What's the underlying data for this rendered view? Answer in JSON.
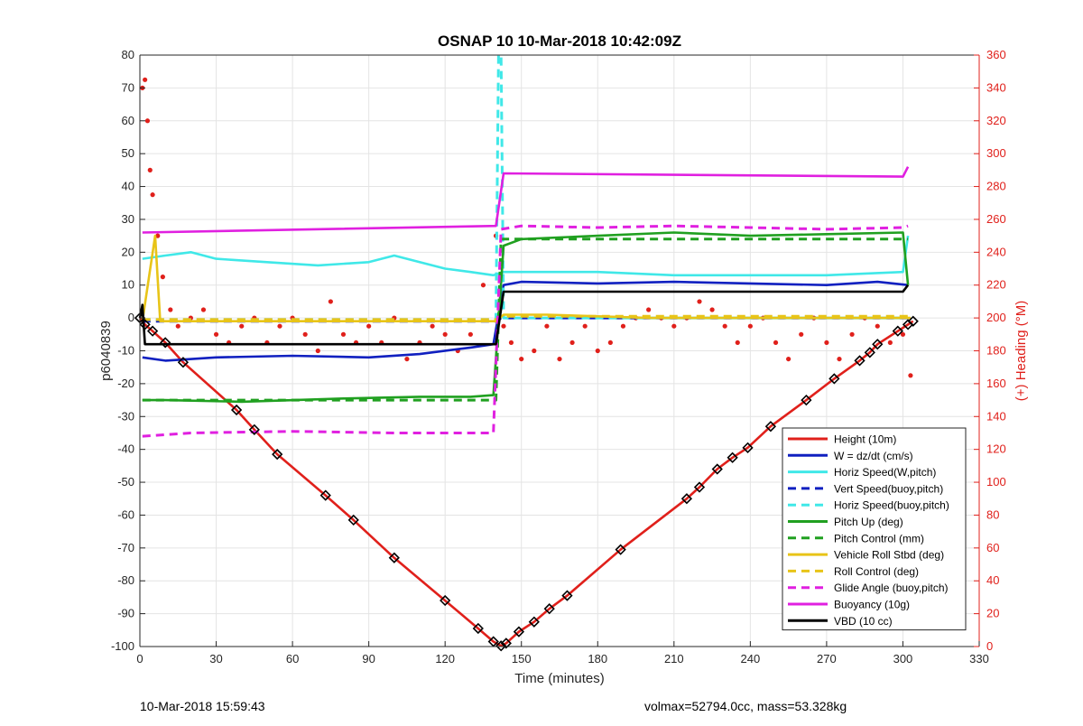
{
  "title": "OSNAP 10 10-Mar-2018 10:42:09Z",
  "footer": {
    "left": "10-Mar-2018 15:59:43",
    "right": "volmax=52794.0cc, mass=53.328kg"
  },
  "colors": {
    "height": "#e0201b",
    "w": "#1020c0",
    "horiz_speed": "#40e8e8",
    "pitch": "#20a020",
    "roll": "#e8c418",
    "glide": "#e020e0",
    "buoyancy": "#e020e0",
    "vbd": "#000000",
    "heading": "#e0201b"
  },
  "chart_data": {
    "type": "line",
    "title": "OSNAP 10 10-Mar-2018 10:42:09Z",
    "xlabel": "Time (minutes)",
    "ylabel": "p6040839",
    "y2label": "(+) Heading (°M)",
    "xlim": [
      0,
      330
    ],
    "ylim": [
      -100,
      80
    ],
    "y2lim": [
      0,
      360
    ],
    "xticks": [
      0,
      30,
      60,
      90,
      120,
      150,
      180,
      210,
      240,
      270,
      300,
      330
    ],
    "yticks": [
      -100,
      -90,
      -80,
      -70,
      -60,
      -50,
      -40,
      -30,
      -20,
      -10,
      0,
      10,
      20,
      30,
      40,
      50,
      60,
      70,
      80
    ],
    "y2ticks": [
      0,
      20,
      40,
      60,
      80,
      100,
      120,
      140,
      160,
      180,
      200,
      220,
      240,
      260,
      280,
      300,
      320,
      340,
      360
    ],
    "grid": true,
    "legend_position": "bottom-right",
    "series": [
      {
        "name": "Height (10m)",
        "color": "#e0201b",
        "style": "solid",
        "x": [
          0,
          2,
          5,
          10,
          17,
          38,
          45,
          54,
          73,
          84,
          100,
          120,
          133,
          139,
          142,
          144,
          149,
          155,
          161,
          168,
          189,
          215,
          220,
          227,
          233,
          239,
          248,
          262,
          273,
          283,
          287,
          290,
          298,
          302,
          304
        ],
        "y": [
          0,
          -2,
          -4,
          -7.5,
          -13.5,
          -28,
          -34,
          -41.5,
          -54,
          -61.5,
          -73,
          -86,
          -94.5,
          -98.5,
          -99.8,
          -99,
          -95.5,
          -92.5,
          -88.5,
          -84.5,
          -70.5,
          -55,
          -51.5,
          -46,
          -42.5,
          -39.5,
          -33,
          -25,
          -18.5,
          -13,
          -10.5,
          -8,
          -4,
          -2,
          -1
        ]
      },
      {
        "name": "W = dz/dt (cm/s)",
        "color": "#1020c0",
        "style": "solid",
        "x": [
          1,
          10,
          30,
          60,
          90,
          110,
          130,
          139,
          143,
          150,
          180,
          210,
          240,
          270,
          290,
          302
        ],
        "y": [
          -12,
          -13,
          -12,
          -11.5,
          -12,
          -11,
          -9,
          -8,
          10,
          11,
          10.5,
          11,
          10.5,
          10,
          11,
          10
        ]
      },
      {
        "name": "Horiz Speed(W,pitch)",
        "color": "#40e8e8",
        "style": "solid",
        "x": [
          1,
          10,
          20,
          30,
          50,
          70,
          90,
          100,
          110,
          120,
          130,
          139,
          143,
          150,
          180,
          210,
          240,
          270,
          300,
          302
        ],
        "y": [
          18,
          19,
          20,
          18,
          17,
          16,
          17,
          19,
          17,
          15,
          14,
          13,
          14,
          14,
          14,
          13,
          13,
          13,
          14,
          25
        ]
      },
      {
        "name": "Vert Speed(buoy,pitch)",
        "color": "#1020c0",
        "style": "dashed",
        "x": [
          1,
          140,
          142,
          302
        ],
        "y": [
          -1,
          -1,
          0,
          0
        ]
      },
      {
        "name": "Horiz Speed(buoy,pitch)",
        "color": "#40e8e8",
        "style": "dashed",
        "x": [
          1,
          140,
          141,
          142,
          143,
          302
        ],
        "y": [
          -0.5,
          -0.5,
          80,
          80,
          0,
          0
        ]
      },
      {
        "name": "Pitch Up (deg)",
        "color": "#20a020",
        "style": "solid",
        "x": [
          1,
          10,
          40,
          80,
          110,
          130,
          139,
          143,
          150,
          180,
          210,
          240,
          270,
          300,
          302
        ],
        "y": [
          -25,
          -25,
          -25.5,
          -24.5,
          -24,
          -24,
          -23.5,
          22,
          24,
          25,
          26,
          25,
          25.5,
          26,
          10
        ]
      },
      {
        "name": "Pitch Control (mm)",
        "color": "#20a020",
        "style": "dashed",
        "x": [
          1,
          140,
          142,
          302
        ],
        "y": [
          -25,
          -25,
          24,
          24
        ]
      },
      {
        "name": "Vehicle Roll Stbd (deg)",
        "color": "#e8c418",
        "style": "solid",
        "x": [
          1,
          6,
          8,
          15,
          18,
          50,
          60,
          90,
          140,
          143,
          160,
          200,
          220,
          260,
          300,
          303
        ],
        "y": [
          -1,
          25,
          -1,
          -1,
          -1,
          -1,
          -1,
          -1,
          -1,
          1,
          1,
          0,
          0,
          0,
          0,
          0
        ]
      },
      {
        "name": "Roll Control (deg)",
        "color": "#e8c418",
        "style": "dashed",
        "x": [
          1,
          140,
          142,
          302
        ],
        "y": [
          -0.5,
          -0.5,
          0.5,
          0.5
        ]
      },
      {
        "name": "Glide Angle (buoy,pitch)",
        "color": "#e020e0",
        "style": "dashed",
        "x": [
          1,
          20,
          60,
          100,
          139,
          142,
          150,
          180,
          210,
          240,
          270,
          300,
          302
        ],
        "y": [
          -36,
          -35,
          -34.5,
          -35,
          -35,
          27,
          28,
          27.5,
          28,
          27.5,
          27,
          27.5,
          28
        ]
      },
      {
        "name": "Buoyancy (10g)",
        "color": "#e020e0",
        "style": "solid",
        "x": [
          1,
          140,
          143,
          300,
          302
        ],
        "y": [
          26,
          28,
          44,
          43,
          46
        ]
      },
      {
        "name": "VBD (10 cc)",
        "color": "#000000",
        "style": "solid",
        "x": [
          0,
          1,
          2,
          140,
          143,
          300,
          302
        ],
        "y": [
          0,
          4,
          -8,
          -8,
          8,
          8,
          10
        ]
      }
    ],
    "heading_series": {
      "axis": "right",
      "color": "#e0201b",
      "style": "dots",
      "x": [
        1,
        2,
        3,
        4,
        5,
        7,
        9,
        12,
        15,
        20,
        25,
        30,
        35,
        40,
        45,
        50,
        55,
        60,
        65,
        70,
        75,
        80,
        85,
        90,
        95,
        100,
        105,
        110,
        115,
        120,
        125,
        130,
        135,
        140,
        143,
        146,
        150,
        155,
        160,
        165,
        170,
        175,
        180,
        185,
        190,
        195,
        200,
        205,
        210,
        215,
        220,
        225,
        230,
        235,
        240,
        245,
        250,
        255,
        260,
        265,
        270,
        275,
        280,
        285,
        290,
        295,
        300,
        303
      ],
      "y": [
        340,
        345,
        320,
        290,
        275,
        250,
        225,
        205,
        195,
        200,
        205,
        190,
        185,
        195,
        200,
        185,
        195,
        200,
        190,
        180,
        210,
        190,
        185,
        195,
        185,
        200,
        175,
        185,
        195,
        190,
        180,
        190,
        220,
        250,
        195,
        185,
        175,
        180,
        195,
        175,
        185,
        195,
        180,
        185,
        195,
        200,
        205,
        200,
        195,
        200,
        210,
        205,
        195,
        185,
        195,
        200,
        185,
        175,
        190,
        200,
        185,
        175,
        190,
        200,
        195,
        185,
        190,
        165
      ]
    }
  }
}
